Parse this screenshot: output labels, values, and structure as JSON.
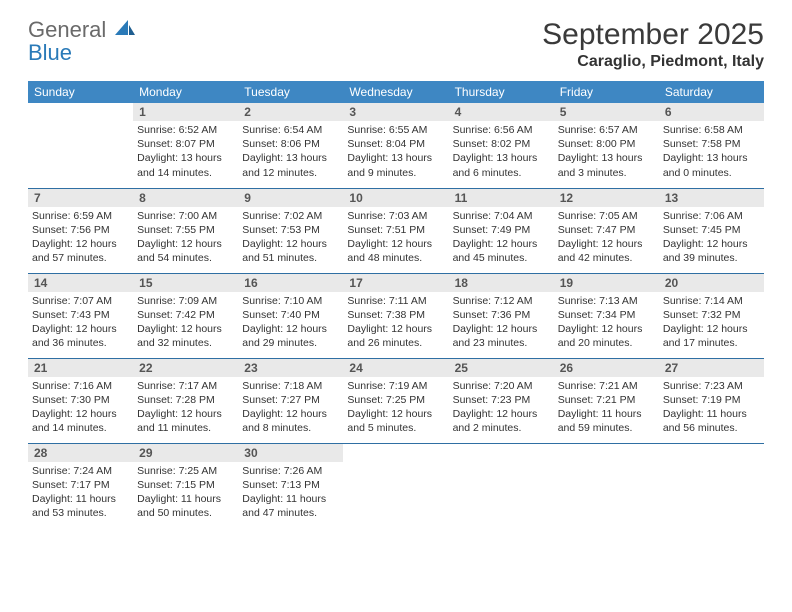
{
  "brand": {
    "line1": "General",
    "line2": "Blue"
  },
  "title": "September 2025",
  "subtitle": "Caraglio, Piedmont, Italy",
  "colors": {
    "header_bg": "#3e87c3",
    "header_fg": "#ffffff",
    "daynum_bg": "#e9e9e9",
    "row_border": "#2f6fa3",
    "brand_gray": "#6a6a6a",
    "brand_blue": "#2a7ab8"
  },
  "weekdays": [
    "Sunday",
    "Monday",
    "Tuesday",
    "Wednesday",
    "Thursday",
    "Friday",
    "Saturday"
  ],
  "weeks": [
    [
      null,
      {
        "n": "1",
        "sr": "6:52 AM",
        "ss": "8:07 PM",
        "dl": "13 hours and 14 minutes."
      },
      {
        "n": "2",
        "sr": "6:54 AM",
        "ss": "8:06 PM",
        "dl": "13 hours and 12 minutes."
      },
      {
        "n": "3",
        "sr": "6:55 AM",
        "ss": "8:04 PM",
        "dl": "13 hours and 9 minutes."
      },
      {
        "n": "4",
        "sr": "6:56 AM",
        "ss": "8:02 PM",
        "dl": "13 hours and 6 minutes."
      },
      {
        "n": "5",
        "sr": "6:57 AM",
        "ss": "8:00 PM",
        "dl": "13 hours and 3 minutes."
      },
      {
        "n": "6",
        "sr": "6:58 AM",
        "ss": "7:58 PM",
        "dl": "13 hours and 0 minutes."
      }
    ],
    [
      {
        "n": "7",
        "sr": "6:59 AM",
        "ss": "7:56 PM",
        "dl": "12 hours and 57 minutes."
      },
      {
        "n": "8",
        "sr": "7:00 AM",
        "ss": "7:55 PM",
        "dl": "12 hours and 54 minutes."
      },
      {
        "n": "9",
        "sr": "7:02 AM",
        "ss": "7:53 PM",
        "dl": "12 hours and 51 minutes."
      },
      {
        "n": "10",
        "sr": "7:03 AM",
        "ss": "7:51 PM",
        "dl": "12 hours and 48 minutes."
      },
      {
        "n": "11",
        "sr": "7:04 AM",
        "ss": "7:49 PM",
        "dl": "12 hours and 45 minutes."
      },
      {
        "n": "12",
        "sr": "7:05 AM",
        "ss": "7:47 PM",
        "dl": "12 hours and 42 minutes."
      },
      {
        "n": "13",
        "sr": "7:06 AM",
        "ss": "7:45 PM",
        "dl": "12 hours and 39 minutes."
      }
    ],
    [
      {
        "n": "14",
        "sr": "7:07 AM",
        "ss": "7:43 PM",
        "dl": "12 hours and 36 minutes."
      },
      {
        "n": "15",
        "sr": "7:09 AM",
        "ss": "7:42 PM",
        "dl": "12 hours and 32 minutes."
      },
      {
        "n": "16",
        "sr": "7:10 AM",
        "ss": "7:40 PM",
        "dl": "12 hours and 29 minutes."
      },
      {
        "n": "17",
        "sr": "7:11 AM",
        "ss": "7:38 PM",
        "dl": "12 hours and 26 minutes."
      },
      {
        "n": "18",
        "sr": "7:12 AM",
        "ss": "7:36 PM",
        "dl": "12 hours and 23 minutes."
      },
      {
        "n": "19",
        "sr": "7:13 AM",
        "ss": "7:34 PM",
        "dl": "12 hours and 20 minutes."
      },
      {
        "n": "20",
        "sr": "7:14 AM",
        "ss": "7:32 PM",
        "dl": "12 hours and 17 minutes."
      }
    ],
    [
      {
        "n": "21",
        "sr": "7:16 AM",
        "ss": "7:30 PM",
        "dl": "12 hours and 14 minutes."
      },
      {
        "n": "22",
        "sr": "7:17 AM",
        "ss": "7:28 PM",
        "dl": "12 hours and 11 minutes."
      },
      {
        "n": "23",
        "sr": "7:18 AM",
        "ss": "7:27 PM",
        "dl": "12 hours and 8 minutes."
      },
      {
        "n": "24",
        "sr": "7:19 AM",
        "ss": "7:25 PM",
        "dl": "12 hours and 5 minutes."
      },
      {
        "n": "25",
        "sr": "7:20 AM",
        "ss": "7:23 PM",
        "dl": "12 hours and 2 minutes."
      },
      {
        "n": "26",
        "sr": "7:21 AM",
        "ss": "7:21 PM",
        "dl": "11 hours and 59 minutes."
      },
      {
        "n": "27",
        "sr": "7:23 AM",
        "ss": "7:19 PM",
        "dl": "11 hours and 56 minutes."
      }
    ],
    [
      {
        "n": "28",
        "sr": "7:24 AM",
        "ss": "7:17 PM",
        "dl": "11 hours and 53 minutes."
      },
      {
        "n": "29",
        "sr": "7:25 AM",
        "ss": "7:15 PM",
        "dl": "11 hours and 50 minutes."
      },
      {
        "n": "30",
        "sr": "7:26 AM",
        "ss": "7:13 PM",
        "dl": "11 hours and 47 minutes."
      },
      null,
      null,
      null,
      null
    ]
  ],
  "labels": {
    "sunrise": "Sunrise:",
    "sunset": "Sunset:",
    "daylight": "Daylight:"
  }
}
